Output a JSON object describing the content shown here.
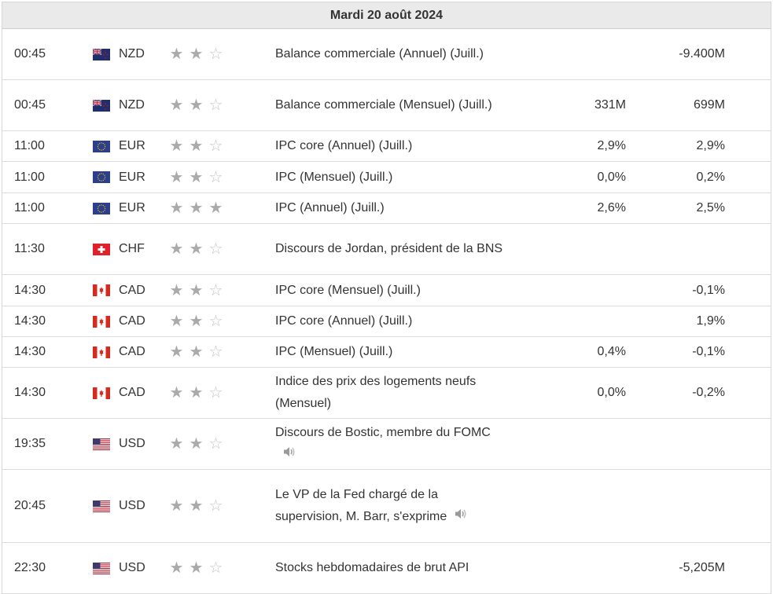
{
  "date_header": "Mardi 20 août 2024",
  "rows": [
    {
      "time": "00:45",
      "flag": "nz-flag-icon",
      "currency": "NZD",
      "stars": [
        "★",
        "★",
        "☆"
      ],
      "event": "Balance commerciale (Annuel) (Juill.)",
      "forecast": "",
      "previous": "-9.400M"
    },
    {
      "time": "00:45",
      "flag": "nz-flag-icon",
      "currency": "NZD",
      "stars": [
        "★",
        "★",
        "☆"
      ],
      "event": "Balance commerciale (Mensuel) (Juill.)",
      "forecast": "331M",
      "previous": "699M"
    },
    {
      "time": "11:00",
      "flag": "eu-flag-icon",
      "currency": "EUR",
      "stars": [
        "★",
        "★",
        "☆"
      ],
      "event": "IPC core (Annuel) (Juill.)",
      "forecast": "2,9%",
      "previous": "2,9%"
    },
    {
      "time": "11:00",
      "flag": "eu-flag-icon",
      "currency": "EUR",
      "stars": [
        "★",
        "★",
        "☆"
      ],
      "event": "IPC (Mensuel) (Juill.)",
      "forecast": "0,0%",
      "previous": "0,2%"
    },
    {
      "time": "11:00",
      "flag": "eu-flag-icon",
      "currency": "EUR",
      "stars": [
        "★",
        "★",
        "★"
      ],
      "event": "IPC (Annuel) (Juill.)",
      "forecast": "2,6%",
      "previous": "2,5%"
    },
    {
      "time": "11:30",
      "flag": "ch-flag-icon",
      "currency": "CHF",
      "stars": [
        "★",
        "★",
        "☆"
      ],
      "event": "Discours de Jordan, président de la BNS",
      "forecast": "",
      "previous": ""
    },
    {
      "time": "14:30",
      "flag": "ca-flag-icon",
      "currency": "CAD",
      "stars": [
        "★",
        "★",
        "☆"
      ],
      "event": "IPC core (Mensuel) (Juill.)",
      "forecast": "",
      "previous": "-0,1%"
    },
    {
      "time": "14:30",
      "flag": "ca-flag-icon",
      "currency": "CAD",
      "stars": [
        "★",
        "★",
        "☆"
      ],
      "event": "IPC core (Annuel) (Juill.)",
      "forecast": "",
      "previous": "1,9%"
    },
    {
      "time": "14:30",
      "flag": "ca-flag-icon",
      "currency": "CAD",
      "stars": [
        "★",
        "★",
        "☆"
      ],
      "event": "IPC (Mensuel) (Juill.)",
      "forecast": "0,4%",
      "previous": "-0,1%"
    },
    {
      "time": "14:30",
      "flag": "ca-flag-icon",
      "currency": "CAD",
      "stars": [
        "★",
        "★",
        "☆"
      ],
      "event": "Indice des prix des logements neufs (Mensuel)",
      "forecast": "0,0%",
      "previous": "-0,2%"
    },
    {
      "time": "19:35",
      "flag": "us-flag-icon",
      "currency": "USD",
      "stars": [
        "★",
        "★",
        "☆"
      ],
      "event": "Discours de Bostic, membre du FOMC",
      "speech": true,
      "forecast": "",
      "previous": ""
    },
    {
      "time": "20:45",
      "flag": "us-flag-icon",
      "currency": "USD",
      "stars": [
        "★",
        "★",
        "☆"
      ],
      "event": "Le VP de la Fed chargé de la supervision, M. Barr, s'exprime",
      "speech": true,
      "forecast": "",
      "previous": ""
    },
    {
      "time": "22:30",
      "flag": "us-flag-icon",
      "currency": "USD",
      "stars": [
        "★",
        "★",
        "☆"
      ],
      "event": "Stocks hebdomadaires de brut API",
      "forecast": "",
      "previous": "-5,205M"
    }
  ]
}
